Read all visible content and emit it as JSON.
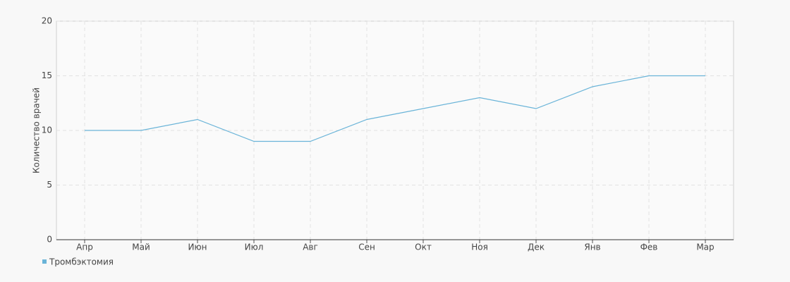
{
  "chart_data": {
    "type": "line",
    "y_label": "Количество врачей",
    "categories": [
      "Апр",
      "Май",
      "Июн",
      "Июл",
      "Авг",
      "Сен",
      "Окт",
      "Ноя",
      "Дек",
      "Янв",
      "Фев",
      "Мар"
    ],
    "series": [
      {
        "name": "Тромбэктомия",
        "color": "#6ab4d8",
        "values": [
          10,
          10,
          11,
          9,
          9,
          11,
          12,
          13,
          12,
          14,
          15,
          15
        ]
      }
    ],
    "ylim": [
      0,
      20
    ],
    "yticks": [
      0,
      5,
      10,
      15,
      20
    ],
    "grid": true,
    "legend": "bottom-left"
  }
}
